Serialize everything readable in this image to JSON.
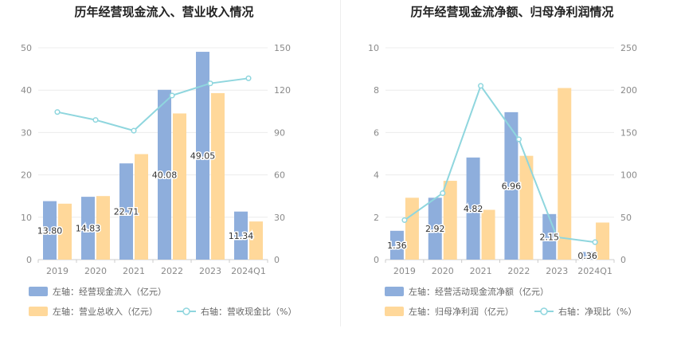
{
  "chart_data": [
    {
      "type": "bar",
      "title": "历年经营现金流入、营业收入情况",
      "categories": [
        "2019",
        "2020",
        "2021",
        "2022",
        "2023",
        "2024Q1"
      ],
      "left_axis": {
        "ylim": [
          0,
          50
        ],
        "ticks": [
          "0",
          "10",
          "20",
          "30",
          "40",
          "50"
        ]
      },
      "right_axis": {
        "ylim": [
          0,
          150
        ],
        "ticks": [
          "0",
          "30",
          "60",
          "90",
          "120",
          "150"
        ]
      },
      "series": [
        {
          "name": "左轴：经营现金流入（亿元）",
          "kind": "bar",
          "axis": "left",
          "color": "#8eaedc",
          "values": [
            13.8,
            14.83,
            22.71,
            40.08,
            49.05,
            11.34
          ],
          "labels": [
            "13.80",
            "14.83",
            "22.71",
            "40.08",
            "49.05",
            "11.34"
          ]
        },
        {
          "name": "左轴：营业总收入（亿元）",
          "kind": "bar",
          "axis": "left",
          "color": "#ffd89a",
          "values": [
            13.2,
            15.0,
            24.9,
            34.5,
            39.3,
            9.0
          ]
        },
        {
          "name": "右轴：营收现金比（%）",
          "kind": "line",
          "axis": "right",
          "color": "#8fd6de",
          "values": [
            104.5,
            98.9,
            91.3,
            116.2,
            124.8,
            128.4
          ]
        }
      ],
      "legend": [
        {
          "label": "左轴：经营现金流入（亿元）",
          "icon": "bar",
          "color": "#8eaedc"
        },
        {
          "label": "左轴：营业总收入（亿元）",
          "icon": "bar",
          "color": "#ffd89a"
        },
        {
          "label": "右轴：营收现金比（%）",
          "icon": "line",
          "color": "#8fd6de"
        }
      ]
    },
    {
      "type": "bar",
      "title": "历年经营现金流净额、归母净利润情况",
      "categories": [
        "2019",
        "2020",
        "2021",
        "2022",
        "2023",
        "2024Q1"
      ],
      "left_axis": {
        "ylim": [
          0,
          10
        ],
        "ticks": [
          "0",
          "2",
          "4",
          "6",
          "8",
          "10"
        ]
      },
      "right_axis": {
        "ylim": [
          0,
          250
        ],
        "ticks": [
          "0",
          "50",
          "100",
          "150",
          "200",
          "250"
        ]
      },
      "series": [
        {
          "name": "左轴：经营活动现金流净额（亿元）",
          "kind": "bar",
          "axis": "left",
          "color": "#8eaedc",
          "values": [
            1.36,
            2.92,
            4.82,
            6.96,
            2.15,
            0.36
          ],
          "labels": [
            "1.36",
            "2.92",
            "4.82",
            "6.96",
            "2.15",
            "0.36"
          ]
        },
        {
          "name": "左轴：归母净利润（亿元）",
          "kind": "bar",
          "axis": "left",
          "color": "#ffd89a",
          "values": [
            2.92,
            3.72,
            2.35,
            4.9,
            8.1,
            1.75
          ]
        },
        {
          "name": "右轴：净现比（%）",
          "kind": "line",
          "axis": "right",
          "color": "#8fd6de",
          "values": [
            46.6,
            78.4,
            205.1,
            142.0,
            26.5,
            20.6
          ]
        }
      ],
      "legend": [
        {
          "label": "左轴：经营活动现金流净额（亿元）",
          "icon": "bar",
          "color": "#8eaedc"
        },
        {
          "label": "左轴：归母净利润（亿元）",
          "icon": "bar",
          "color": "#ffd89a"
        },
        {
          "label": "右轴：净现比（%）",
          "icon": "line",
          "color": "#8fd6de"
        }
      ]
    }
  ]
}
